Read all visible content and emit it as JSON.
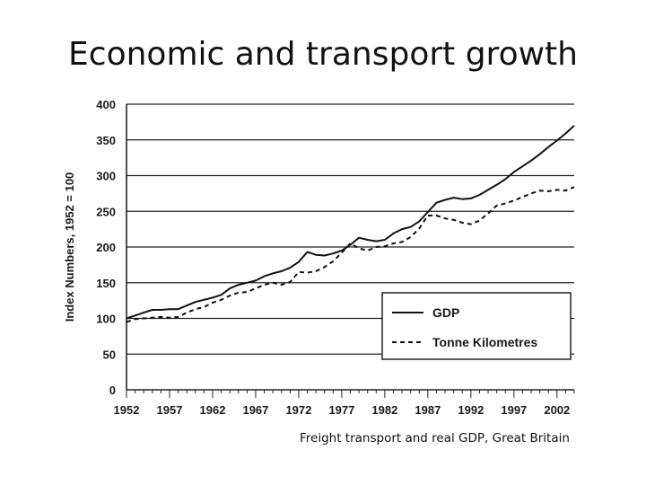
{
  "slide": {
    "title": "Economic and transport growth",
    "caption": "Freight transport and real GDP, Great Britain"
  },
  "colors": {
    "line": "#111111",
    "grid": "#222222",
    "background": "#ffffff"
  },
  "chart_data": {
    "type": "line",
    "ylabel": "Index Numbers, 1952 = 100",
    "xlabel": "",
    "xlim": [
      1952,
      2004
    ],
    "ylim": [
      0,
      400
    ],
    "grid": true,
    "legend_position": "bottom-right",
    "xticks": [
      1952,
      1957,
      1962,
      1967,
      1972,
      1977,
      1982,
      1987,
      1992,
      1997,
      2002
    ],
    "yticks": [
      0,
      50,
      100,
      150,
      200,
      250,
      300,
      350,
      400
    ],
    "series": [
      {
        "name": "GDP",
        "style": "solid",
        "x": [
          1952,
          1953,
          1954,
          1955,
          1956,
          1957,
          1958,
          1959,
          1960,
          1961,
          1962,
          1963,
          1964,
          1965,
          1966,
          1967,
          1968,
          1969,
          1970,
          1971,
          1972,
          1973,
          1974,
          1975,
          1976,
          1977,
          1978,
          1979,
          1980,
          1981,
          1982,
          1983,
          1984,
          1985,
          1986,
          1987,
          1988,
          1989,
          1990,
          1991,
          1992,
          1993,
          1994,
          1995,
          1996,
          1997,
          1998,
          1999,
          2000,
          2001,
          2002,
          2003,
          2004
        ],
        "values": [
          100,
          104,
          108,
          112,
          112,
          113,
          113,
          118,
          123,
          126,
          129,
          133,
          142,
          147,
          150,
          153,
          159,
          163,
          166,
          171,
          179,
          193,
          189,
          188,
          191,
          195,
          203,
          213,
          210,
          208,
          210,
          219,
          225,
          228,
          236,
          249,
          262,
          266,
          269,
          267,
          268,
          273,
          280,
          287,
          295,
          305,
          313,
          321,
          330,
          340,
          349,
          359,
          370
        ]
      },
      {
        "name": "Tonne Kilometres",
        "style": "dashed",
        "x": [
          1952,
          1953,
          1954,
          1955,
          1956,
          1957,
          1958,
          1959,
          1960,
          1961,
          1962,
          1963,
          1964,
          1965,
          1966,
          1967,
          1968,
          1969,
          1970,
          1971,
          1972,
          1973,
          1974,
          1975,
          1976,
          1977,
          1978,
          1979,
          1980,
          1981,
          1982,
          1983,
          1984,
          1985,
          1986,
          1987,
          1988,
          1989,
          1990,
          1991,
          1992,
          1993,
          1994,
          1995,
          1996,
          1997,
          1998,
          1999,
          2000,
          2001,
          2002,
          2003,
          2004
        ],
        "values": [
          95,
          99,
          100,
          101,
          102,
          101,
          102,
          108,
          113,
          116,
          122,
          126,
          132,
          136,
          137,
          142,
          147,
          150,
          147,
          151,
          165,
          164,
          166,
          172,
          180,
          192,
          205,
          198,
          195,
          200,
          201,
          205,
          207,
          214,
          226,
          244,
          244,
          240,
          238,
          234,
          232,
          237,
          247,
          258,
          261,
          265,
          270,
          275,
          279,
          278,
          280,
          279,
          284
        ]
      }
    ]
  }
}
